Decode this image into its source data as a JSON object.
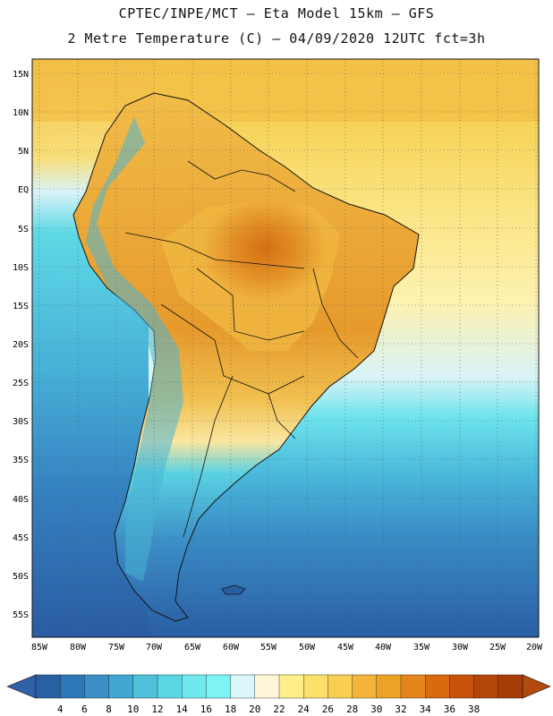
{
  "title_line1": "CPTEC/INPE/MCT –  Eta Model 15km – GFS",
  "title_line2": "2 Metre Temperature (C) – 04/09/2020 12UTC fct=3h",
  "lat_labels": [
    "15N",
    "10N",
    "5N",
    "EQ",
    "5S",
    "10S",
    "15S",
    "20S",
    "25S",
    "30S",
    "35S",
    "40S",
    "45S",
    "50S",
    "55S"
  ],
  "lon_labels": [
    "85W",
    "80W",
    "75W",
    "70W",
    "65W",
    "60W",
    "55W",
    "50W",
    "45W",
    "40W",
    "35W",
    "30W",
    "25W",
    "20W"
  ],
  "colorbar": {
    "ticks": [
      "4",
      "6",
      "8",
      "10",
      "12",
      "14",
      "16",
      "18",
      "20",
      "22",
      "24",
      "26",
      "28",
      "30",
      "32",
      "34",
      "36",
      "38"
    ],
    "colors": [
      "#2a5fa3",
      "#2f78b8",
      "#3b8fc6",
      "#42a6d2",
      "#4ec0da",
      "#5ad7e3",
      "#6fe8ee",
      "#7df4f3",
      "#d9f6f9",
      "#fdf6d8",
      "#fdf08a",
      "#fbe06a",
      "#f8cf52",
      "#f2b43a",
      "#eda126",
      "#e4861d",
      "#d96a10",
      "#c8520a",
      "#b34609",
      "#a63c07"
    ],
    "under_color": "#3060a8",
    "over_color": "#b14a0c"
  },
  "map": {
    "ocean_cold": "#2c62a6",
    "ocean_mid": "#44b6d8",
    "ocean_warm": "#fbe37a",
    "land_hot": "#dd7a1c",
    "land_warm": "#f0b43f",
    "andes_cold": "#3a8cc4"
  }
}
